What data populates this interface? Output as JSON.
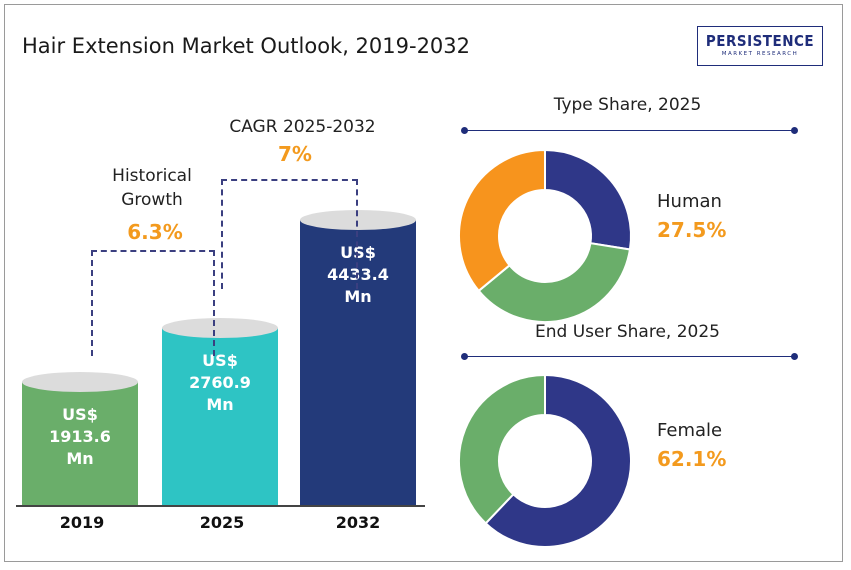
{
  "title": "Hair Extension Market Outlook, 2019-2032",
  "logo": {
    "name": "PERSISTENCE",
    "subtitle": "MARKET RESEARCH"
  },
  "colors": {
    "green": "#6aae6a",
    "teal": "#2ec4c4",
    "navy": "#233a7a",
    "orange": "#f39a1e",
    "indigo": "#2f3788",
    "cap": "#dcdcdc"
  },
  "chart_data": [
    {
      "type": "bar",
      "title": "",
      "categories": [
        "2019",
        "2025",
        "2032"
      ],
      "values": [
        1913.6,
        2760.9,
        4433.4
      ],
      "value_labels": [
        {
          "l1": "US$",
          "l2": "1913.6",
          "l3": "Mn"
        },
        {
          "l1": "US$",
          "l2": "2760.9",
          "l3": "Mn"
        },
        {
          "l1": "US$",
          "l2": "4433.4",
          "l3": "Mn"
        }
      ],
      "annotations": {
        "historical": {
          "line1": "Historical",
          "line2": "Growth",
          "value": "6.3%"
        },
        "cagr": {
          "label": "CAGR 2025-2032",
          "value": "7%"
        }
      },
      "ylim": [
        0,
        5000
      ]
    },
    {
      "type": "pie",
      "title": "Type Share, 2025",
      "highlight": {
        "name": "Human",
        "label": "27.5%"
      },
      "slices": [
        {
          "value": 27.5,
          "color": "#2f3788"
        },
        {
          "value": 36.5,
          "color": "#6aae6a"
        },
        {
          "value": 36.0,
          "color": "#f7941d"
        }
      ]
    },
    {
      "type": "pie",
      "title": "End User Share, 2025",
      "highlight": {
        "name": "Female",
        "label": "62.1%"
      },
      "slices": [
        {
          "value": 62.1,
          "color": "#2f3788"
        },
        {
          "value": 37.9,
          "color": "#6aae6a"
        }
      ]
    }
  ]
}
